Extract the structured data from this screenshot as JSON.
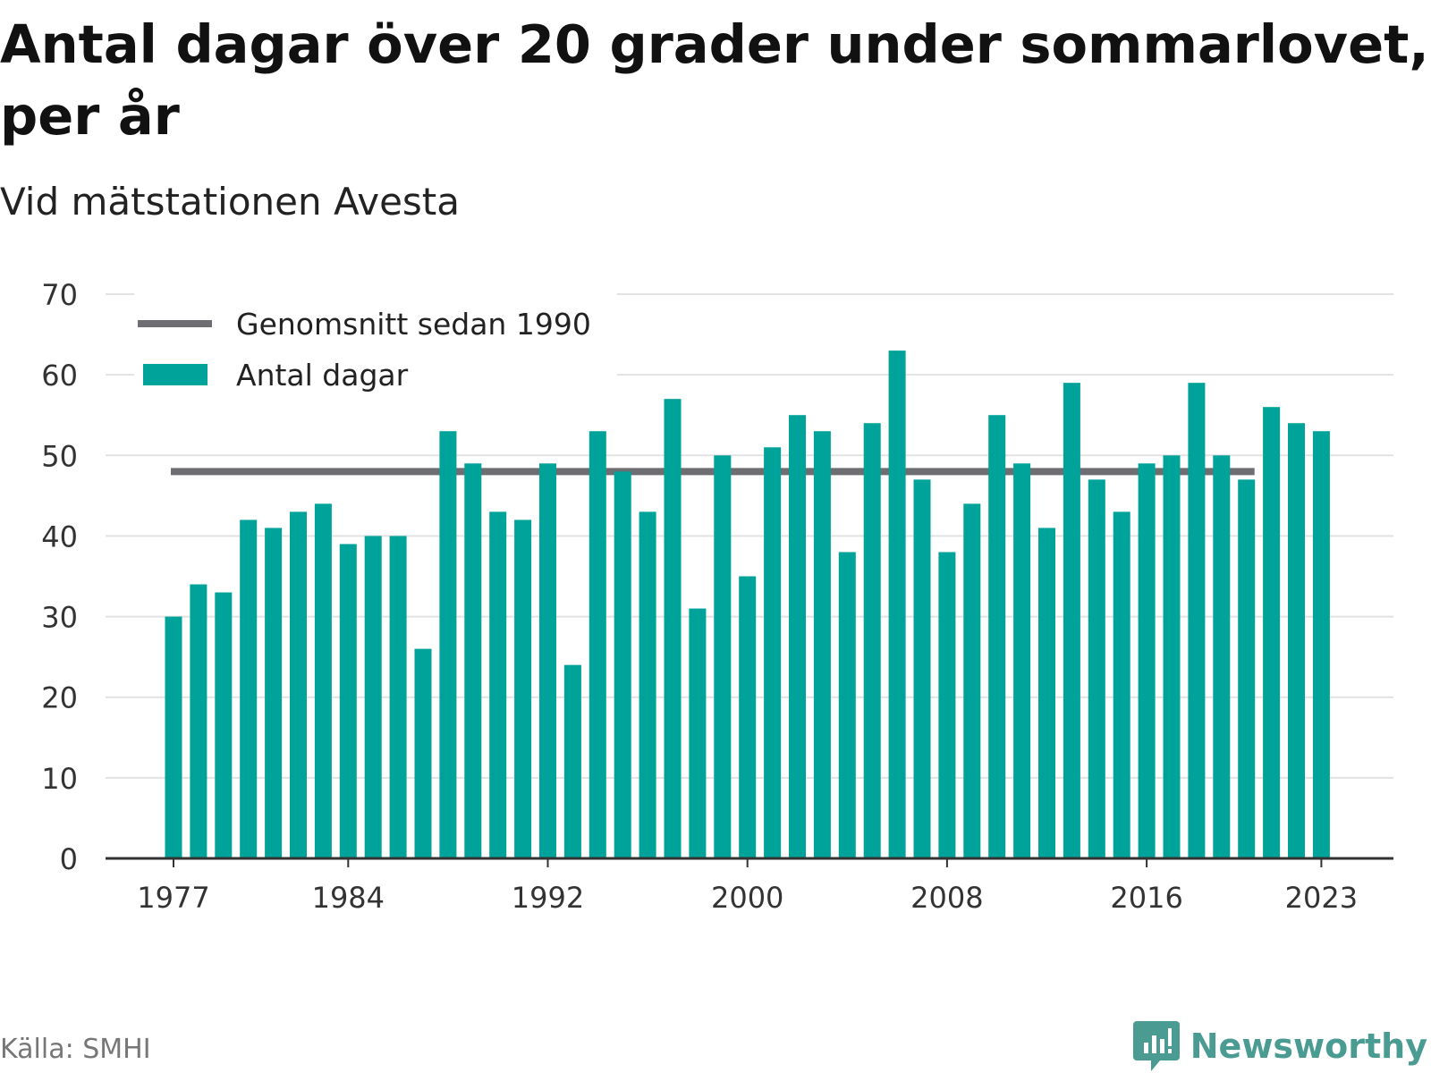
{
  "header": {
    "title": "Antal dagar över 20 grader under sommarlovet, per år",
    "subtitle": "Vid mätstationen Avesta"
  },
  "footer": {
    "source": "Källa: SMHI",
    "brand": "Newsworthy"
  },
  "colors": {
    "bar": "#00a399",
    "average_line": "#6d6d72",
    "grid": "#e2e2e2",
    "axis": "#333333",
    "brand": "#4a9c93"
  },
  "chart_data": {
    "type": "bar",
    "title": "Antal dagar över 20 grader under sommarlovet, per år",
    "subtitle": "Vid mätstationen Avesta",
    "xlabel": "",
    "ylabel": "",
    "ylim": [
      0,
      70
    ],
    "yticks": [
      "0",
      "10",
      "20",
      "30",
      "40",
      "50",
      "60",
      "70"
    ],
    "xticks": [
      "1977",
      "1984",
      "1992",
      "2000",
      "2008",
      "2016",
      "2023"
    ],
    "grid": true,
    "legend_position": "top-left",
    "categories": [
      1977,
      1978,
      1979,
      1980,
      1981,
      1982,
      1983,
      1984,
      1985,
      1986,
      1987,
      1988,
      1989,
      1990,
      1991,
      1992,
      1993,
      1994,
      1995,
      1996,
      1997,
      1998,
      1999,
      2000,
      2001,
      2002,
      2003,
      2004,
      2005,
      2006,
      2007,
      2008,
      2009,
      2010,
      2011,
      2012,
      2013,
      2014,
      2015,
      2016,
      2017,
      2018,
      2019,
      2020,
      2021,
      2022,
      2023
    ],
    "series": [
      {
        "name": "Antal dagar",
        "type": "bar",
        "values": [
          30,
          34,
          33,
          42,
          41,
          43,
          44,
          39,
          40,
          40,
          26,
          53,
          49,
          43,
          42,
          49,
          24,
          53,
          48,
          43,
          57,
          31,
          50,
          35,
          51,
          55,
          53,
          38,
          54,
          63,
          47,
          38,
          44,
          55,
          49,
          41,
          59,
          47,
          43,
          49,
          50,
          59,
          50,
          47,
          56,
          54,
          53
        ]
      },
      {
        "name": "Genomsnitt sedan 1990",
        "type": "line",
        "value": 48,
        "x_range": [
          1977,
          2020
        ]
      }
    ]
  }
}
